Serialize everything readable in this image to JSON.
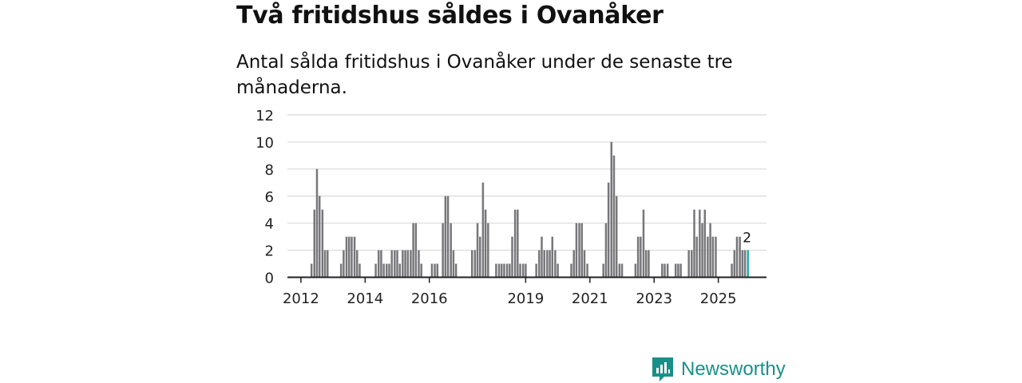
{
  "title": "Två fritidshus såldes i Ovanåker",
  "subtitle": "Antal sålda fritidshus i Ovanåker under de senaste tre månaderna.",
  "brand": {
    "name": "Newsworthy",
    "icon": "newsworthy-logo-icon",
    "color": "#1a8f88"
  },
  "colors": {
    "bar": "#77777b",
    "highlight": "#20aba1",
    "grid": "#d9d9d9",
    "axis": "#222222"
  },
  "chart_data": {
    "type": "bar",
    "title": "Två fritidshus såldes i Ovanåker",
    "xlabel": "",
    "ylabel": "",
    "ylim": [
      0,
      12
    ],
    "yticks": [
      0,
      2,
      4,
      6,
      8,
      10,
      12
    ],
    "xlim": [
      2011.58,
      2026.5
    ],
    "xticks": [
      2012,
      2014,
      2016,
      2019,
      2021,
      2023,
      2025
    ],
    "bar_width": 0.062,
    "bars": [
      {
        "x": 2012.33,
        "v": 1
      },
      {
        "x": 2012.42,
        "v": 5
      },
      {
        "x": 2012.5,
        "v": 8
      },
      {
        "x": 2012.58,
        "v": 6
      },
      {
        "x": 2012.67,
        "v": 5
      },
      {
        "x": 2012.75,
        "v": 2
      },
      {
        "x": 2012.83,
        "v": 2
      },
      {
        "x": 2013.25,
        "v": 1
      },
      {
        "x": 2013.33,
        "v": 2
      },
      {
        "x": 2013.42,
        "v": 3
      },
      {
        "x": 2013.5,
        "v": 3
      },
      {
        "x": 2013.58,
        "v": 3
      },
      {
        "x": 2013.67,
        "v": 3
      },
      {
        "x": 2013.75,
        "v": 2
      },
      {
        "x": 2013.83,
        "v": 1
      },
      {
        "x": 2014.33,
        "v": 1
      },
      {
        "x": 2014.42,
        "v": 2
      },
      {
        "x": 2014.5,
        "v": 2
      },
      {
        "x": 2014.58,
        "v": 1
      },
      {
        "x": 2014.67,
        "v": 1
      },
      {
        "x": 2014.75,
        "v": 1
      },
      {
        "x": 2014.83,
        "v": 2
      },
      {
        "x": 2014.92,
        "v": 2
      },
      {
        "x": 2015.0,
        "v": 2
      },
      {
        "x": 2015.08,
        "v": 1
      },
      {
        "x": 2015.17,
        "v": 2
      },
      {
        "x": 2015.25,
        "v": 2
      },
      {
        "x": 2015.33,
        "v": 2
      },
      {
        "x": 2015.42,
        "v": 2
      },
      {
        "x": 2015.5,
        "v": 4
      },
      {
        "x": 2015.58,
        "v": 4
      },
      {
        "x": 2015.67,
        "v": 2
      },
      {
        "x": 2015.75,
        "v": 1
      },
      {
        "x": 2016.08,
        "v": 1
      },
      {
        "x": 2016.17,
        "v": 1
      },
      {
        "x": 2016.25,
        "v": 1
      },
      {
        "x": 2016.42,
        "v": 4
      },
      {
        "x": 2016.5,
        "v": 6
      },
      {
        "x": 2016.58,
        "v": 6
      },
      {
        "x": 2016.67,
        "v": 4
      },
      {
        "x": 2016.75,
        "v": 2
      },
      {
        "x": 2016.83,
        "v": 1
      },
      {
        "x": 2017.33,
        "v": 2
      },
      {
        "x": 2017.42,
        "v": 2
      },
      {
        "x": 2017.5,
        "v": 4
      },
      {
        "x": 2017.58,
        "v": 3
      },
      {
        "x": 2017.67,
        "v": 7
      },
      {
        "x": 2017.75,
        "v": 5
      },
      {
        "x": 2017.83,
        "v": 4
      },
      {
        "x": 2018.08,
        "v": 1
      },
      {
        "x": 2018.17,
        "v": 1
      },
      {
        "x": 2018.25,
        "v": 1
      },
      {
        "x": 2018.33,
        "v": 1
      },
      {
        "x": 2018.42,
        "v": 1
      },
      {
        "x": 2018.5,
        "v": 1
      },
      {
        "x": 2018.58,
        "v": 3
      },
      {
        "x": 2018.67,
        "v": 5
      },
      {
        "x": 2018.75,
        "v": 5
      },
      {
        "x": 2018.83,
        "v": 1
      },
      {
        "x": 2018.92,
        "v": 1
      },
      {
        "x": 2019.0,
        "v": 1
      },
      {
        "x": 2019.33,
        "v": 1
      },
      {
        "x": 2019.42,
        "v": 2
      },
      {
        "x": 2019.5,
        "v": 3
      },
      {
        "x": 2019.58,
        "v": 2
      },
      {
        "x": 2019.67,
        "v": 2
      },
      {
        "x": 2019.75,
        "v": 2
      },
      {
        "x": 2019.83,
        "v": 3
      },
      {
        "x": 2019.92,
        "v": 2
      },
      {
        "x": 2020.0,
        "v": 1
      },
      {
        "x": 2020.42,
        "v": 1
      },
      {
        "x": 2020.5,
        "v": 2
      },
      {
        "x": 2020.58,
        "v": 4
      },
      {
        "x": 2020.67,
        "v": 4
      },
      {
        "x": 2020.75,
        "v": 4
      },
      {
        "x": 2020.83,
        "v": 2
      },
      {
        "x": 2020.92,
        "v": 1
      },
      {
        "x": 2021.42,
        "v": 1
      },
      {
        "x": 2021.5,
        "v": 4
      },
      {
        "x": 2021.58,
        "v": 7
      },
      {
        "x": 2021.67,
        "v": 10
      },
      {
        "x": 2021.75,
        "v": 9
      },
      {
        "x": 2021.83,
        "v": 6
      },
      {
        "x": 2021.92,
        "v": 1
      },
      {
        "x": 2022.0,
        "v": 1
      },
      {
        "x": 2022.42,
        "v": 1
      },
      {
        "x": 2022.5,
        "v": 3
      },
      {
        "x": 2022.58,
        "v": 3
      },
      {
        "x": 2022.67,
        "v": 5
      },
      {
        "x": 2022.75,
        "v": 2
      },
      {
        "x": 2022.83,
        "v": 2
      },
      {
        "x": 2023.25,
        "v": 1
      },
      {
        "x": 2023.33,
        "v": 1
      },
      {
        "x": 2023.42,
        "v": 1
      },
      {
        "x": 2023.67,
        "v": 1
      },
      {
        "x": 2023.75,
        "v": 1
      },
      {
        "x": 2023.83,
        "v": 1
      },
      {
        "x": 2024.08,
        "v": 2
      },
      {
        "x": 2024.17,
        "v": 2
      },
      {
        "x": 2024.25,
        "v": 5
      },
      {
        "x": 2024.33,
        "v": 3
      },
      {
        "x": 2024.42,
        "v": 5
      },
      {
        "x": 2024.5,
        "v": 4
      },
      {
        "x": 2024.58,
        "v": 5
      },
      {
        "x": 2024.67,
        "v": 3
      },
      {
        "x": 2024.75,
        "v": 4
      },
      {
        "x": 2024.83,
        "v": 3
      },
      {
        "x": 2024.92,
        "v": 3
      },
      {
        "x": 2025.42,
        "v": 1
      },
      {
        "x": 2025.5,
        "v": 2
      },
      {
        "x": 2025.58,
        "v": 3
      },
      {
        "x": 2025.67,
        "v": 3
      },
      {
        "x": 2025.75,
        "v": 2
      },
      {
        "x": 2025.83,
        "v": 2
      },
      {
        "x": 2025.92,
        "v": 2
      }
    ],
    "highlight": {
      "x": 2025.92,
      "v": 2,
      "label": "2"
    }
  }
}
